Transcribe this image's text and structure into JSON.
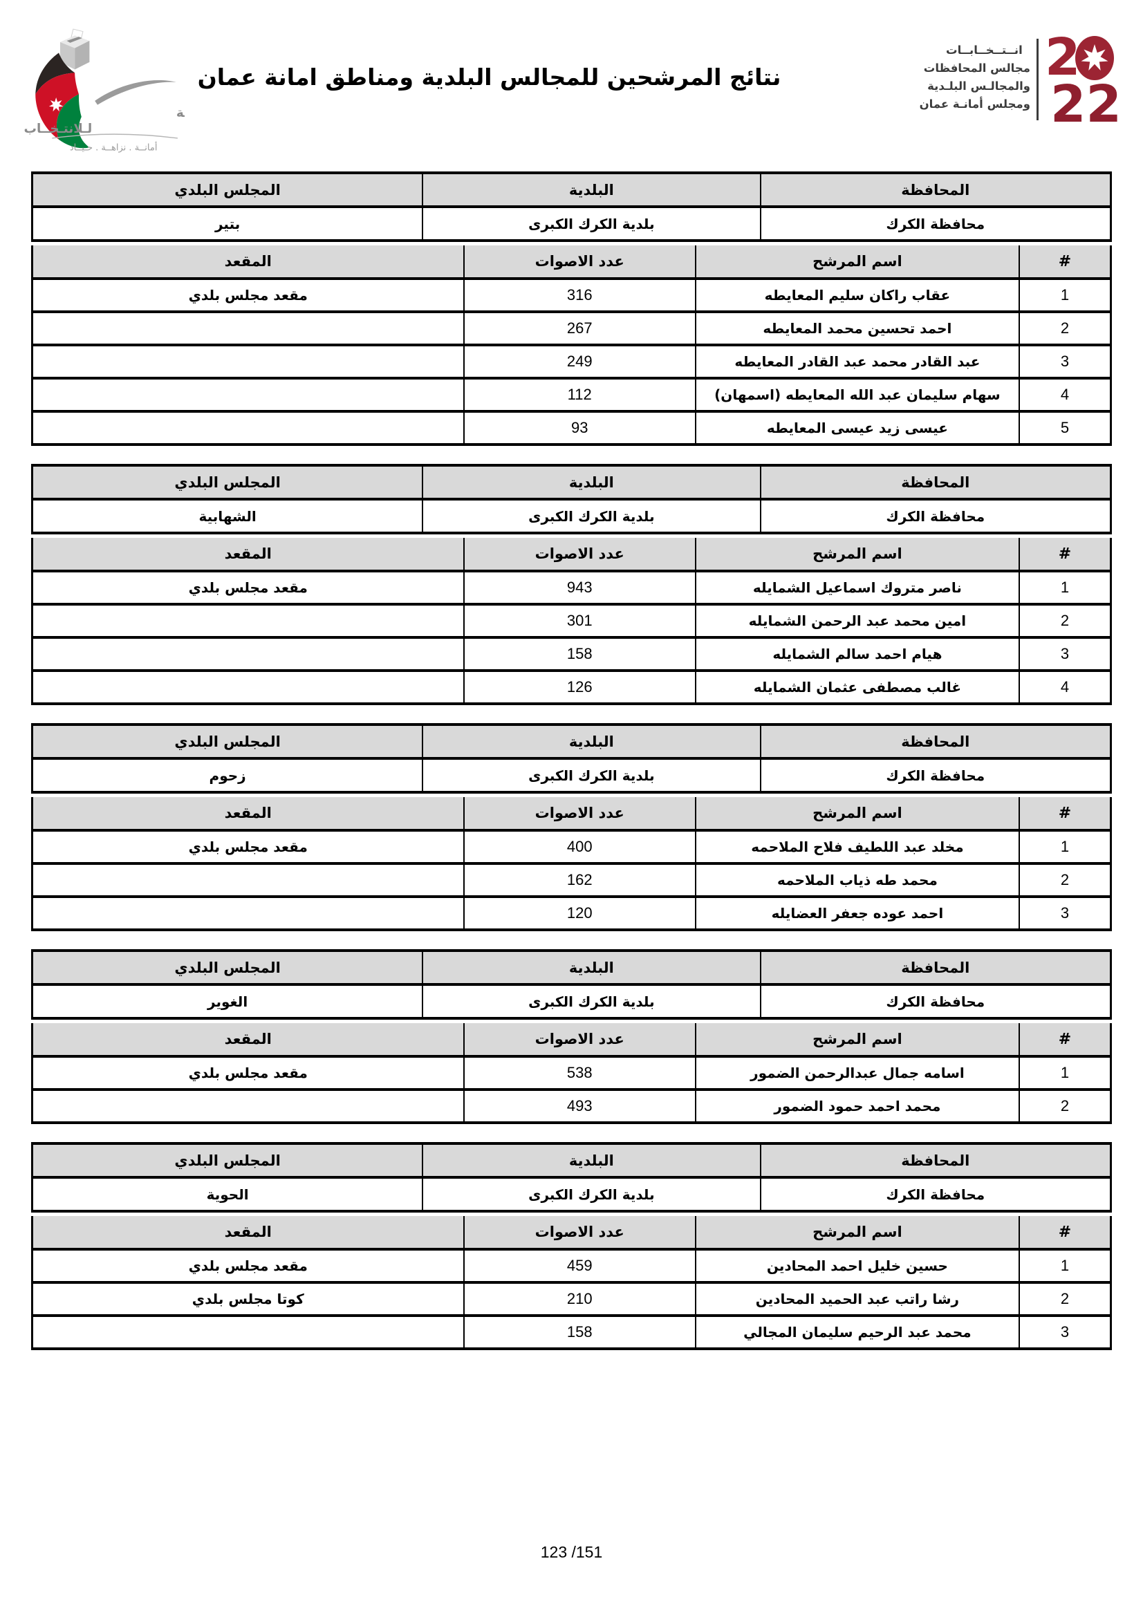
{
  "header": {
    "title": "نتائج المرشحين للمجالس البلدية ومناطق امانة عمان",
    "iec_logo": {
      "line1": "الهيئة المسـتقلة",
      "line2": "لـلانتـخــاب",
      "tagline": "أمانــة . نزاهــة . حـيــاد",
      "flag_colors": {
        "black": "#2b2422",
        "red": "#ce1126",
        "green": "#00813d",
        "white": "#ffffff"
      }
    },
    "election_logo": {
      "lines": [
        "انــتــخــابــات",
        "مجالس المحافظات",
        "والمجالـس البلـدية",
        "ومجلس أمانـة عمان"
      ],
      "year_top_digit": "2",
      "year_bottom": "22",
      "accent": "#9e1f2f"
    }
  },
  "labels": {
    "governorate": "المحافظة",
    "municipality": "البلدية",
    "council": "المجلس البلدي",
    "num": "#",
    "candidate": "اسم المرشح",
    "votes": "عدد الاصوات",
    "seat": "المقعد"
  },
  "tables": [
    {
      "governorate": "محافظة الكرك",
      "municipality": "بلدية الكرك الكبرى",
      "council": "بتير",
      "rows": [
        {
          "num": "1",
          "name": "عقاب راكان سليم المعايطه",
          "votes": "316",
          "seat": "مقعد مجلس بلدي"
        },
        {
          "num": "2",
          "name": "احمد تحسين محمد المعايطه",
          "votes": "267",
          "seat": ""
        },
        {
          "num": "3",
          "name": "عبد القادر محمد عبد القادر المعايطه",
          "votes": "249",
          "seat": ""
        },
        {
          "num": "4",
          "name": "سهام سليمان عبد الله المعايطه (اسمهان)",
          "votes": "112",
          "seat": ""
        },
        {
          "num": "5",
          "name": "عيسى زيد عيسى المعايطه",
          "votes": "93",
          "seat": ""
        }
      ]
    },
    {
      "governorate": "محافظة الكرك",
      "municipality": "بلدية الكرك الكبرى",
      "council": "الشهابية",
      "rows": [
        {
          "num": "1",
          "name": "ناصر متروك اسماعيل الشمايله",
          "votes": "943",
          "seat": "مقعد مجلس بلدي"
        },
        {
          "num": "2",
          "name": "امين محمد عبد الرحمن الشمايله",
          "votes": "301",
          "seat": ""
        },
        {
          "num": "3",
          "name": "هيام احمد سالم الشمايله",
          "votes": "158",
          "seat": ""
        },
        {
          "num": "4",
          "name": "غالب مصطفى عثمان الشمايله",
          "votes": "126",
          "seat": ""
        }
      ]
    },
    {
      "governorate": "محافظة الكرك",
      "municipality": "بلدية الكرك الكبرى",
      "council": "زحوم",
      "rows": [
        {
          "num": "1",
          "name": "مخلد عبد اللطيف فلاح الملاحمه",
          "votes": "400",
          "seat": "مقعد مجلس بلدي"
        },
        {
          "num": "2",
          "name": "محمد طه ذياب الملاحمه",
          "votes": "162",
          "seat": ""
        },
        {
          "num": "3",
          "name": "احمد عوده جعفر العضايله",
          "votes": "120",
          "seat": ""
        }
      ]
    },
    {
      "governorate": "محافظة الكرك",
      "municipality": "بلدية الكرك الكبرى",
      "council": "الغوير",
      "rows": [
        {
          "num": "1",
          "name": "اسامه جمال عبدالرحمن الضمور",
          "votes": "538",
          "seat": "مقعد مجلس بلدي"
        },
        {
          "num": "2",
          "name": "محمد احمد حمود الضمور",
          "votes": "493",
          "seat": ""
        }
      ]
    },
    {
      "governorate": "محافظة الكرك",
      "municipality": "بلدية الكرك الكبرى",
      "council": "الحوية",
      "rows": [
        {
          "num": "1",
          "name": "حسين خليل احمد المحادين",
          "votes": "459",
          "seat": "مقعد مجلس بلدي"
        },
        {
          "num": "2",
          "name": "رشا راتب عبد الحميد المحادين",
          "votes": "210",
          "seat": "كوتا مجلس بلدي"
        },
        {
          "num": "3",
          "name": "محمد عبد الرحيم سليمان المجالي",
          "votes": "158",
          "seat": ""
        }
      ]
    }
  ],
  "footer": {
    "page_indicator": "123 /151"
  }
}
